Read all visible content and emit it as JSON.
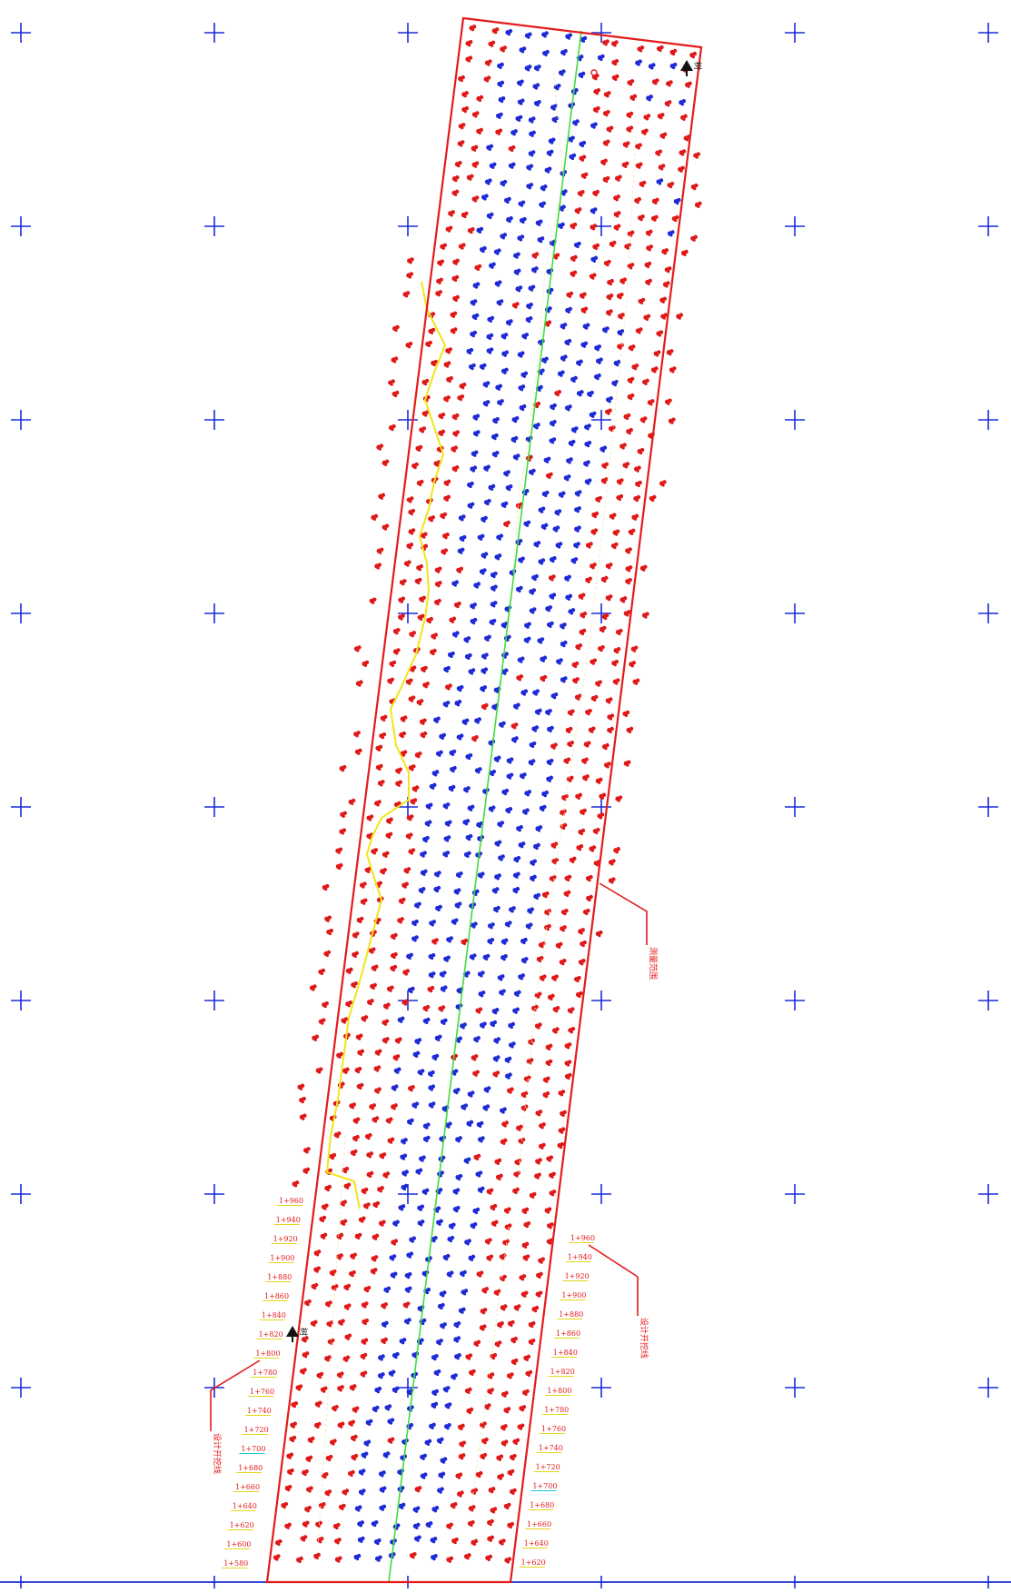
{
  "colors": {
    "grid": "#1a2bd8",
    "boundary": "#e41b1b",
    "blue_points": "#1d2ad6",
    "red_points": "#e01818",
    "centerline": "#3fdc3f",
    "contour": "#f2e51a",
    "station_text": "#e41b1b",
    "station_underline_yellow": "#e8d51a",
    "station_underline_cyan": "#19c9d9"
  },
  "icons": {
    "north_marker": "tree-marker-icon",
    "survey_points": "point-cluster-icon",
    "grid_marks": "cross-hair-icon"
  },
  "stations_left": [
    "1+960",
    "1+940",
    "1+920",
    "1+900",
    "1+880",
    "1+860",
    "1+840",
    "1+820",
    "1+800",
    "1+780",
    "1+760",
    "1+740",
    "1+720",
    "1+700",
    "1+680",
    "1+660",
    "1+640",
    "1+620",
    "1+600",
    "1+580"
  ],
  "stations_right": [
    "1+960",
    "1+940",
    "1+920",
    "1+900",
    "1+880",
    "1+860",
    "1+840",
    "1+820",
    "1+800",
    "1+780",
    "1+760",
    "1+740",
    "1+720",
    "1+700",
    "1+680",
    "1+660",
    "1+640",
    "1+620"
  ],
  "callouts": {
    "right_mid": "测量范围",
    "right_low": "设计开挖线",
    "left_low": "设计开挖线"
  },
  "markers": {
    "top": "树",
    "left": "树"
  }
}
